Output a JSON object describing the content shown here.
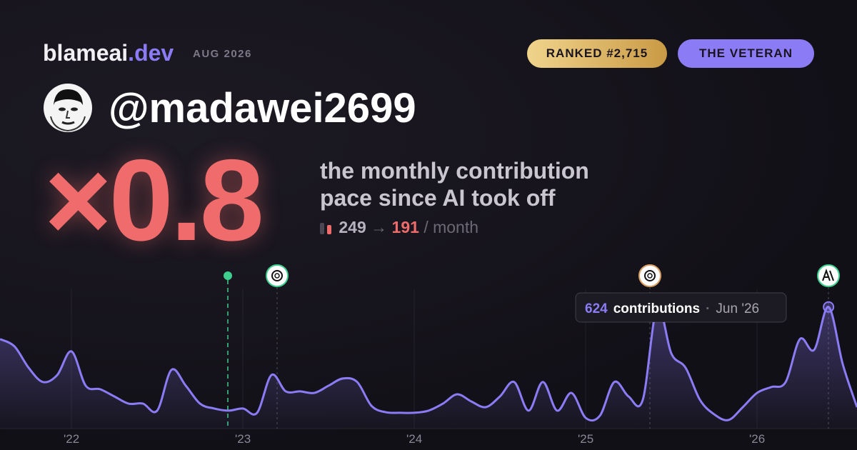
{
  "header": {
    "brand": "blameai",
    "brand_tld": ".dev",
    "date": "AUG 2026",
    "rank_badge": "RANKED #2,715",
    "title_badge": "THE VETERAN",
    "handle": "@madawei2699"
  },
  "summary": {
    "multiplier": "×0.8",
    "description_line1": "the monthly contribution",
    "description_line2": "pace since AI took off",
    "before": 249,
    "arrow": "→",
    "after": 191,
    "unit": "/ month"
  },
  "chart_data": {
    "type": "line",
    "color": "#8b7cf6",
    "x": [
      2021.583,
      2021.667,
      2021.75,
      2021.833,
      2021.917,
      2022,
      2022.083,
      2022.167,
      2022.25,
      2022.333,
      2022.417,
      2022.5,
      2022.583,
      2022.667,
      2022.75,
      2022.833,
      2022.917,
      2023,
      2023.083,
      2023.167,
      2023.25,
      2023.333,
      2023.417,
      2023.5,
      2023.583,
      2023.667,
      2023.75,
      2023.833,
      2023.917,
      2024,
      2024.083,
      2024.167,
      2024.25,
      2024.333,
      2024.417,
      2024.5,
      2024.583,
      2024.667,
      2024.75,
      2024.833,
      2024.917,
      2025,
      2025.083,
      2025.167,
      2025.25,
      2025.333,
      2025.417,
      2025.5,
      2025.583,
      2025.667,
      2025.75,
      2025.833,
      2025.917,
      2026,
      2026.083,
      2026.167,
      2026.25,
      2026.333,
      2026.417,
      2026.5,
      2026.583
    ],
    "values": [
      459,
      422,
      312,
      239,
      275,
      396,
      220,
      202,
      165,
      128,
      128,
      92,
      301,
      220,
      128,
      103,
      92,
      103,
      81,
      275,
      191,
      191,
      183,
      220,
      257,
      239,
      117,
      84,
      81,
      81,
      92,
      128,
      176,
      139,
      110,
      165,
      239,
      92,
      239,
      92,
      183,
      55,
      66,
      239,
      165,
      147,
      624,
      385,
      312,
      147,
      73,
      44,
      110,
      183,
      213,
      239,
      459,
      404,
      624,
      330,
      110
    ],
    "xlim": [
      2021.583,
      2026.583
    ],
    "xticks": [
      {
        "value": 2022,
        "label": "'22"
      },
      {
        "value": 2023,
        "label": "'23"
      },
      {
        "value": 2024,
        "label": "'24"
      },
      {
        "value": 2025,
        "label": "'25"
      },
      {
        "value": 2026,
        "label": "'26"
      }
    ],
    "ylim": [
      0,
      700
    ],
    "grid": true,
    "tooltip": {
      "value": 624,
      "label": "contributions",
      "date": "Jun '26"
    }
  }
}
